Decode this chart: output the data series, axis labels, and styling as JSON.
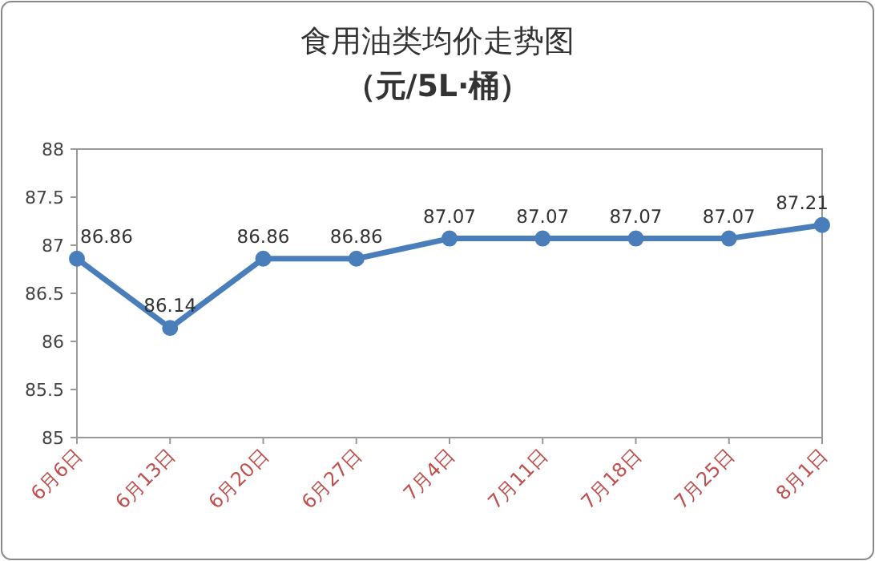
{
  "chart_data": {
    "type": "line",
    "title": "食用油类均价走势图",
    "subtitle": "（元/5L·桶）",
    "categories": [
      "6月6日",
      "6月13日",
      "6月20日",
      "6月27日",
      "7月4日",
      "7月11日",
      "7月18日",
      "7月25日",
      "8月1日"
    ],
    "values": [
      86.86,
      86.14,
      86.86,
      86.86,
      87.07,
      87.07,
      87.07,
      87.07,
      87.21
    ],
    "color": "#4a7ebb",
    "ylim": [
      85,
      88
    ],
    "yticks": [
      85,
      85.5,
      86,
      86.5,
      87,
      87.5,
      88
    ],
    "data_labels": true,
    "marker": "circle"
  }
}
